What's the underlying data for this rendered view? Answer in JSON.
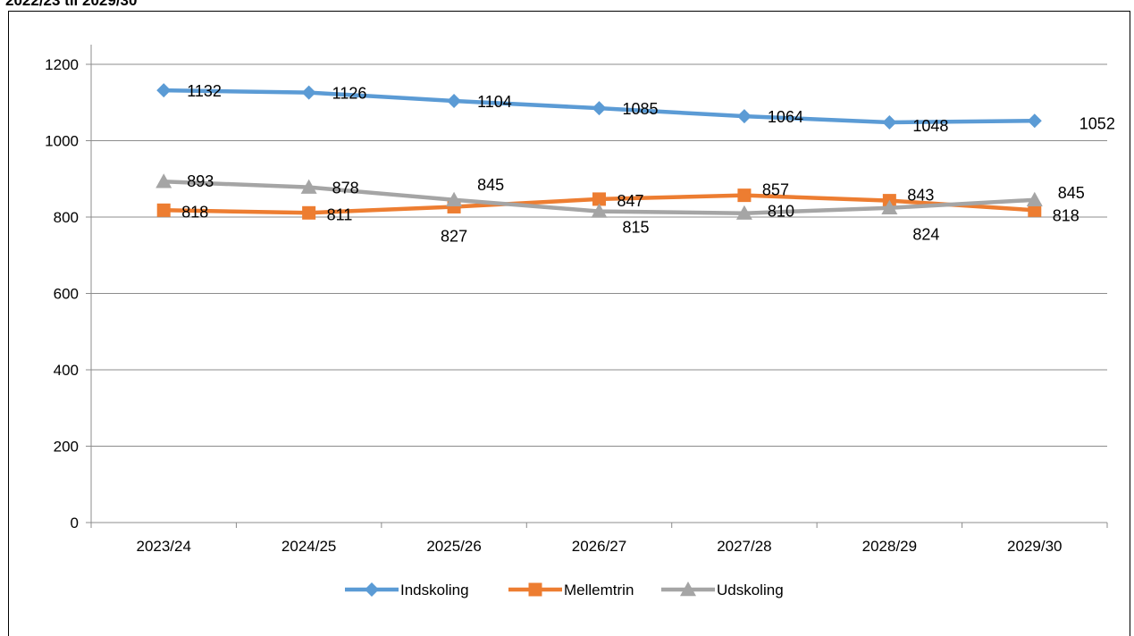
{
  "header": {
    "cut_title": "2022/23 til 2029/30"
  },
  "chart_data": {
    "type": "line",
    "title": "",
    "xlabel": "",
    "ylabel": "",
    "categories": [
      "2023/24",
      "2024/25",
      "2025/26",
      "2026/27",
      "2027/28",
      "2028/29",
      "2029/30"
    ],
    "ylim": [
      0,
      1200
    ],
    "yticks": [
      0,
      200,
      400,
      600,
      800,
      1000,
      1200
    ],
    "grid": true,
    "legend_position": "bottom",
    "series": [
      {
        "name": "Indskoling",
        "values": [
          1132,
          1126,
          1104,
          1085,
          1064,
          1048,
          1052
        ],
        "color": "#5B9BD5",
        "marker": "diamond"
      },
      {
        "name": "Mellemtrin",
        "values": [
          818,
          811,
          827,
          847,
          857,
          843,
          818
        ],
        "color": "#ED7D31",
        "marker": "square"
      },
      {
        "name": "Udskoling",
        "values": [
          893,
          878,
          845,
          815,
          810,
          824,
          845
        ],
        "color": "#A5A5A5",
        "marker": "triangle"
      }
    ]
  }
}
